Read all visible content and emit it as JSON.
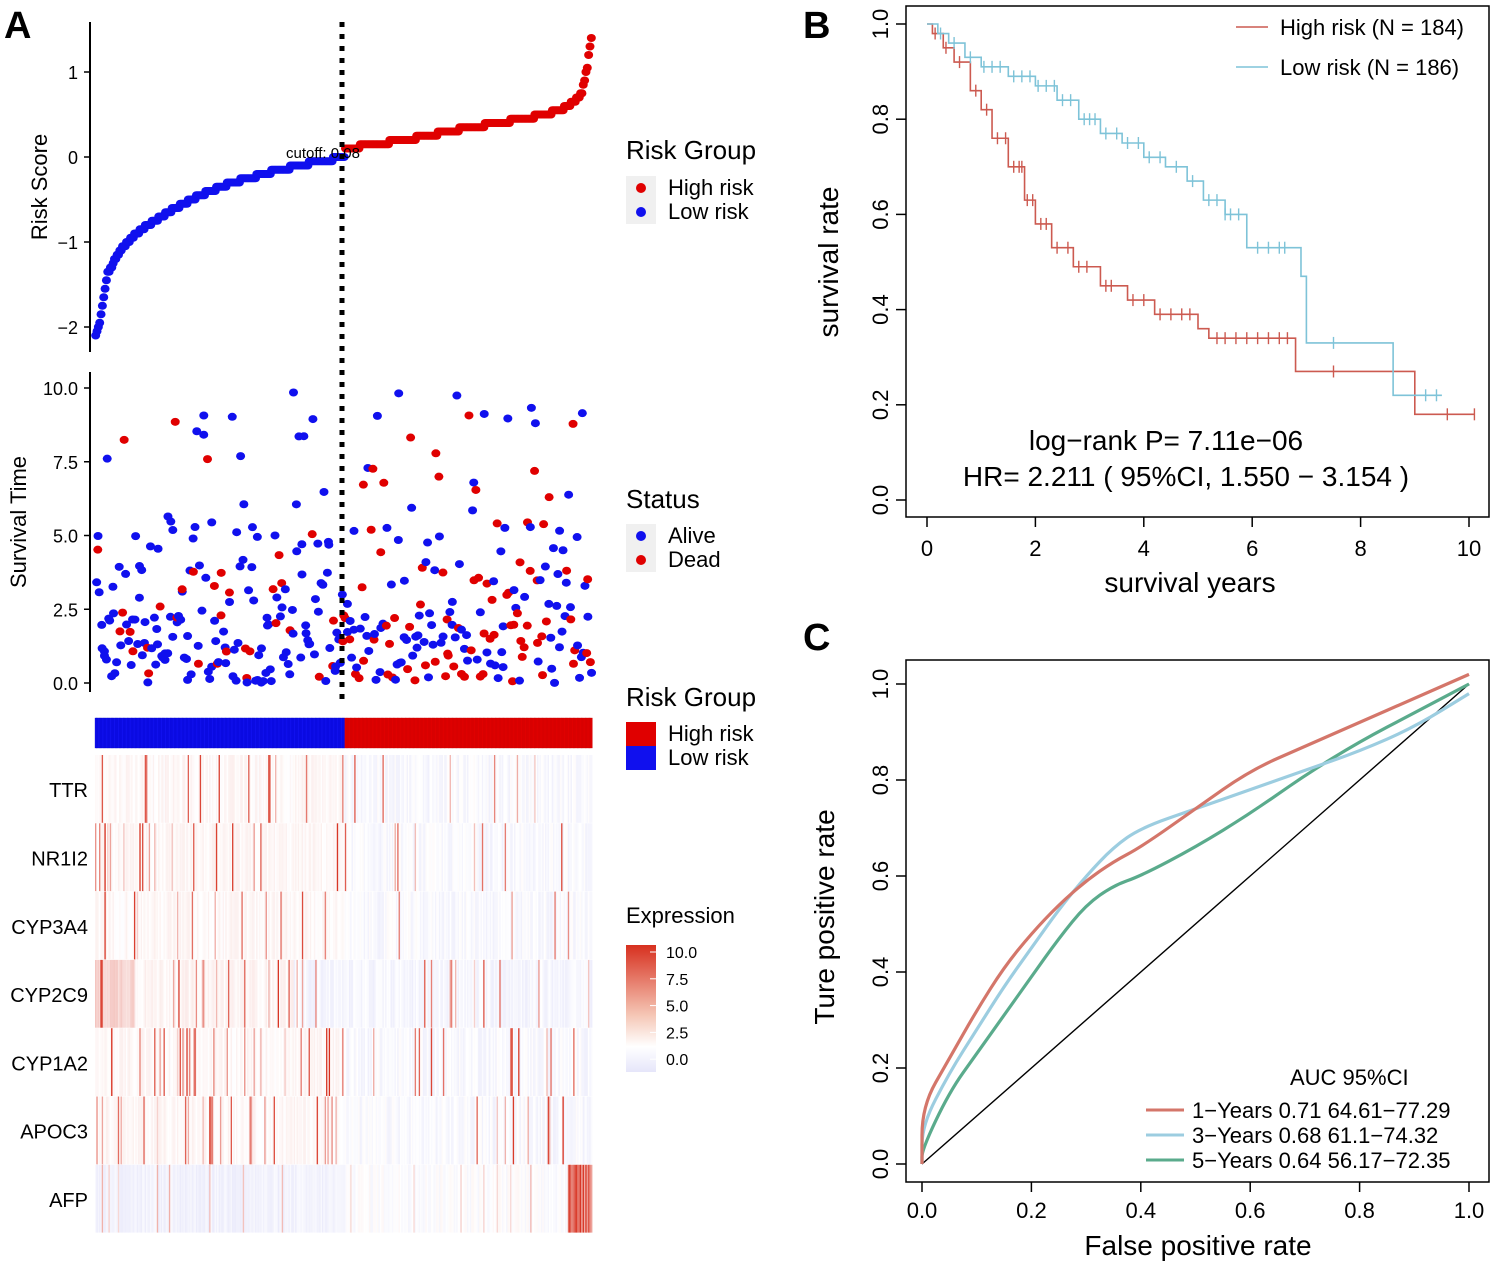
{
  "colors": {
    "high": "#e00000",
    "low": "#1010ee",
    "km_high": "#cc5a50",
    "km_low": "#7ec3d8",
    "roc1": "#d4766a",
    "roc3": "#9ccde0",
    "roc5": "#5aab8c",
    "heat_hi": "#d7301f",
    "heat_mid": "#ffffff",
    "heat_lo": "#e6e6fa"
  },
  "panels": {
    "A": {
      "label": "A"
    },
    "B": {
      "label": "B"
    },
    "C": {
      "label": "C"
    }
  },
  "chart_data": [
    {
      "id": "risk_score",
      "type": "scatter",
      "ylabel": "Risk Score",
      "ylim": [
        -2.2,
        1.45
      ],
      "yticks": [
        -2,
        -1,
        0,
        1
      ],
      "cutoff_label": "cutoff: 0.08",
      "cutoff_value": 0.08,
      "n_low": 186,
      "n_high": 184,
      "legend_title": "Risk Group",
      "legend": [
        "High risk",
        "Low risk"
      ],
      "low_quantiles": [
        [
          0,
          -2.1
        ],
        [
          0.02,
          -1.9
        ],
        [
          0.05,
          -1.35
        ],
        [
          0.1,
          -1.1
        ],
        [
          0.16,
          -0.9
        ],
        [
          0.24,
          -0.75
        ],
        [
          0.32,
          -0.6
        ],
        [
          0.42,
          -0.45
        ],
        [
          0.55,
          -0.3
        ],
        [
          0.7,
          -0.18
        ],
        [
          0.85,
          -0.08
        ],
        [
          1,
          0.0
        ]
      ],
      "high_quantiles": [
        [
          0,
          0.1
        ],
        [
          0.12,
          0.15
        ],
        [
          0.28,
          0.22
        ],
        [
          0.45,
          0.32
        ],
        [
          0.62,
          0.4
        ],
        [
          0.78,
          0.48
        ],
        [
          0.88,
          0.56
        ],
        [
          0.93,
          0.65
        ],
        [
          0.96,
          0.75
        ],
        [
          0.98,
          1.0
        ],
        [
          1,
          1.4
        ]
      ]
    },
    {
      "id": "survival_time",
      "type": "scatter",
      "ylabel": "Survival Time",
      "ylim": [
        -0.3,
        10.3
      ],
      "yticks": [
        0.0,
        2.5,
        5.0,
        7.5,
        10.0
      ],
      "tick_labels": [
        "0.0",
        "2.5",
        "5.0",
        "7.5",
        "10.0"
      ],
      "legend_title": "Status",
      "legend": [
        "Alive",
        "Dead"
      ]
    },
    {
      "id": "heatmap",
      "type": "heatmap",
      "genes": [
        "TTR",
        "NR1I2",
        "CYP3A4",
        "CYP2C9",
        "CYP1A2",
        "APOC3",
        "AFP"
      ],
      "group_legend_title": "Risk Group",
      "group_legend": [
        "High risk",
        "Low risk"
      ],
      "expression_title": "Expression",
      "expression_ticks": [
        "10.0",
        "7.5",
        "5.0",
        "2.5",
        "0.0"
      ],
      "expression_range": [
        0,
        10
      ]
    },
    {
      "id": "kaplan_meier",
      "type": "line",
      "xlabel": "survival years",
      "ylabel": "survival rate",
      "xlim": [
        0,
        10.2
      ],
      "ylim": [
        0,
        1.0
      ],
      "xticks": [
        0,
        2,
        4,
        6,
        8,
        10
      ],
      "yticks": [
        "0.0",
        "0.2",
        "0.4",
        "0.6",
        "0.8",
        "1.0"
      ],
      "series": [
        {
          "name": "High risk (N = 184)",
          "points": [
            [
              0,
              1.0
            ],
            [
              0.1,
              0.98
            ],
            [
              0.3,
              0.95
            ],
            [
              0.5,
              0.92
            ],
            [
              0.8,
              0.86
            ],
            [
              1.0,
              0.82
            ],
            [
              1.2,
              0.76
            ],
            [
              1.5,
              0.7
            ],
            [
              1.8,
              0.63
            ],
            [
              2.0,
              0.58
            ],
            [
              2.3,
              0.53
            ],
            [
              2.7,
              0.49
            ],
            [
              3.2,
              0.45
            ],
            [
              3.7,
              0.42
            ],
            [
              4.2,
              0.39
            ],
            [
              5.0,
              0.36
            ],
            [
              5.2,
              0.34
            ],
            [
              6.8,
              0.34
            ],
            [
              6.8,
              0.27
            ],
            [
              9.0,
              0.27
            ],
            [
              9.0,
              0.18
            ],
            [
              10.1,
              0.18
            ]
          ],
          "censor": [
            0.15,
            0.35,
            0.6,
            0.9,
            1.1,
            1.3,
            1.45,
            1.6,
            1.7,
            1.75,
            1.85,
            1.95,
            2.1,
            2.2,
            2.4,
            2.6,
            2.8,
            2.95,
            3.3,
            3.4,
            3.8,
            4.0,
            4.3,
            4.5,
            4.7,
            4.85,
            5.35,
            5.5,
            5.7,
            5.9,
            6.1,
            6.3,
            6.5,
            6.65,
            7.5,
            9.6,
            10.1
          ]
        },
        {
          "name": "Low risk (N = 186)",
          "points": [
            [
              0,
              1.0
            ],
            [
              0.2,
              0.98
            ],
            [
              0.4,
              0.96
            ],
            [
              0.7,
              0.93
            ],
            [
              1.0,
              0.91
            ],
            [
              1.5,
              0.89
            ],
            [
              2.0,
              0.87
            ],
            [
              2.4,
              0.84
            ],
            [
              2.8,
              0.8
            ],
            [
              3.2,
              0.77
            ],
            [
              3.6,
              0.75
            ],
            [
              4.0,
              0.72
            ],
            [
              4.4,
              0.7
            ],
            [
              4.8,
              0.67
            ],
            [
              5.1,
              0.63
            ],
            [
              5.5,
              0.6
            ],
            [
              5.8,
              0.6
            ],
            [
              5.9,
              0.53
            ],
            [
              6.8,
              0.53
            ],
            [
              6.9,
              0.47
            ],
            [
              7.0,
              0.33
            ],
            [
              8.6,
              0.33
            ],
            [
              8.6,
              0.22
            ],
            [
              9.5,
              0.22
            ]
          ],
          "censor": [
            0.25,
            0.5,
            0.8,
            1.05,
            1.2,
            1.35,
            1.6,
            1.75,
            1.9,
            2.05,
            2.2,
            2.35,
            2.5,
            2.65,
            2.9,
            3.0,
            3.1,
            3.3,
            3.5,
            3.7,
            3.9,
            4.1,
            4.3,
            4.6,
            4.9,
            5.2,
            5.35,
            5.5,
            5.6,
            5.75,
            6.1,
            6.3,
            6.5,
            6.6,
            7.5,
            9.2,
            9.4
          ]
        }
      ],
      "annotation_pvalue": "log−rank P= 7.11e−06",
      "annotation_hr": "HR= 2.211 ( 95%CI, 1.550 − 3.154 )"
    },
    {
      "id": "roc",
      "type": "line",
      "xlabel": "False positive rate",
      "ylabel": "Ture positive rate",
      "xlim": [
        0,
        1
      ],
      "ylim": [
        0,
        1
      ],
      "xticks": [
        "0.0",
        "0.2",
        "0.4",
        "0.6",
        "0.8",
        "1.0"
      ],
      "yticks": [
        "0.0",
        "0.2",
        "0.4",
        "0.6",
        "0.8",
        "1.0"
      ],
      "legend_title": "AUC 95%CI",
      "series": [
        {
          "name": "1−Years 0.71 64.61−77.29",
          "points": [
            [
              0,
              0.0
            ],
            [
              0,
              0.12
            ],
            [
              0.05,
              0.22
            ],
            [
              0.1,
              0.32
            ],
            [
              0.15,
              0.41
            ],
            [
              0.2,
              0.48
            ],
            [
              0.25,
              0.54
            ],
            [
              0.3,
              0.59
            ],
            [
              0.35,
              0.63
            ],
            [
              0.4,
              0.66
            ],
            [
              0.5,
              0.74
            ],
            [
              0.6,
              0.82
            ],
            [
              0.7,
              0.87
            ],
            [
              0.8,
              0.92
            ],
            [
              0.9,
              0.97
            ],
            [
              1.0,
              1.02
            ]
          ]
        },
        {
          "name": "3−Years 0.68 61.1−74.32",
          "points": [
            [
              0,
              0.0
            ],
            [
              0,
              0.08
            ],
            [
              0.05,
              0.19
            ],
            [
              0.1,
              0.28
            ],
            [
              0.15,
              0.37
            ],
            [
              0.2,
              0.45
            ],
            [
              0.25,
              0.53
            ],
            [
              0.3,
              0.6
            ],
            [
              0.35,
              0.66
            ],
            [
              0.4,
              0.7
            ],
            [
              0.5,
              0.74
            ],
            [
              0.6,
              0.78
            ],
            [
              0.7,
              0.82
            ],
            [
              0.8,
              0.86
            ],
            [
              0.9,
              0.91
            ],
            [
              1.0,
              0.98
            ]
          ]
        },
        {
          "name": "5−Years 0.64 56.17−72.35",
          "points": [
            [
              0,
              0.0
            ],
            [
              0,
              0.03
            ],
            [
              0.05,
              0.15
            ],
            [
              0.1,
              0.23
            ],
            [
              0.15,
              0.31
            ],
            [
              0.2,
              0.39
            ],
            [
              0.25,
              0.47
            ],
            [
              0.3,
              0.54
            ],
            [
              0.35,
              0.58
            ],
            [
              0.4,
              0.6
            ],
            [
              0.5,
              0.66
            ],
            [
              0.6,
              0.73
            ],
            [
              0.7,
              0.81
            ],
            [
              0.8,
              0.88
            ],
            [
              0.9,
              0.94
            ],
            [
              1.0,
              1.0
            ]
          ]
        }
      ],
      "diagonal": [
        [
          0,
          0
        ],
        [
          1,
          1
        ]
      ]
    }
  ]
}
